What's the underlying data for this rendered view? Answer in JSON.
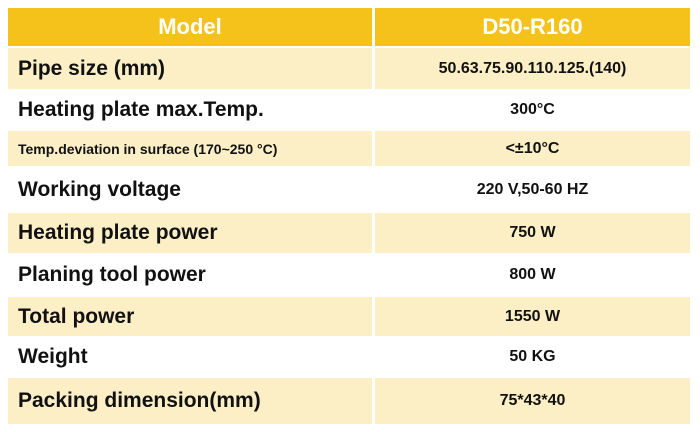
{
  "table": {
    "header": [
      "Model",
      "D50-R160"
    ],
    "rows": [
      [
        "Pipe size (mm)",
        "50.63.75.90.110.125.(140)"
      ],
      [
        "Heating plate max.Temp.",
        "300°C"
      ],
      [
        "Temp.deviation in surface (170~250 °C)",
        "<±10°C"
      ],
      [
        "Working voltage",
        "220 V,50-60 HZ"
      ],
      [
        "Heating plate power",
        "750 W"
      ],
      [
        "Planing tool power",
        "800 W"
      ],
      [
        "Total power",
        "1550 W"
      ],
      [
        "Weight",
        "50 KG"
      ],
      [
        "Packing dimension(mm)",
        "75*43*40"
      ]
    ]
  }
}
